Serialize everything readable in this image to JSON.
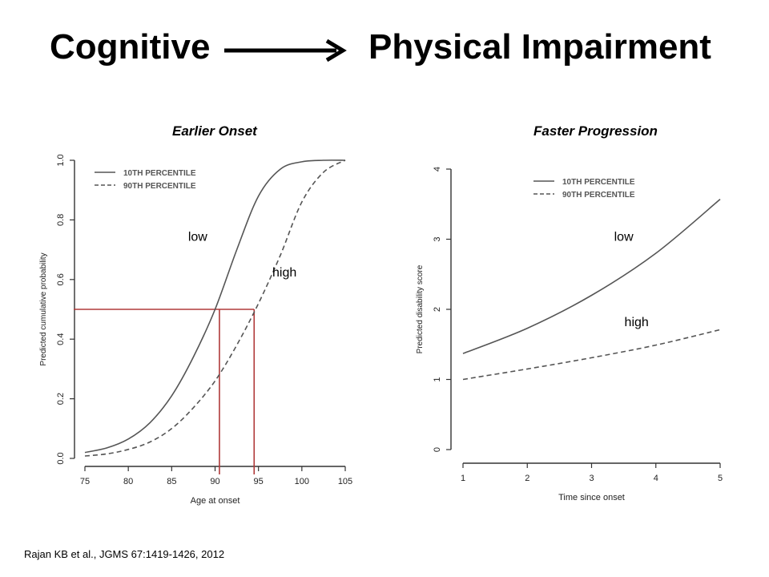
{
  "slide": {
    "title_left": "Cognitive",
    "title_right": "Physical Impairment",
    "citation": "Rajan KB et al., JGMS 67:1419-1426, 2012"
  },
  "colors": {
    "line": "#555555",
    "guide": "#b03a3a",
    "axis": "#333333"
  },
  "chart_data": [
    {
      "type": "line",
      "title": "Earlier Onset",
      "xlabel": "Age at onset",
      "ylabel": "Predicted cumulative probability",
      "xlim": [
        75,
        105
      ],
      "ylim": [
        0,
        1
      ],
      "xticks": [
        "75",
        "80",
        "85",
        "90",
        "95",
        "100",
        "105"
      ],
      "yticks": [
        "0.0",
        "0.2",
        "0.4",
        "0.6",
        "0.8",
        "1.0"
      ],
      "legend_position": "top-left",
      "x": [
        75,
        77.5,
        80,
        82.5,
        85,
        87.5,
        90,
        92.5,
        95,
        97.5,
        100,
        102.5,
        105
      ],
      "series": [
        {
          "name": "10TH PERCENTILE",
          "style": "solid",
          "values": [
            0.02,
            0.035,
            0.065,
            0.12,
            0.21,
            0.34,
            0.5,
            0.7,
            0.88,
            0.97,
            0.995,
            1.0,
            1.0
          ]
        },
        {
          "name": "90TH PERCENTILE",
          "style": "dashed",
          "values": [
            0.008,
            0.015,
            0.03,
            0.055,
            0.1,
            0.17,
            0.26,
            0.38,
            0.52,
            0.68,
            0.86,
            0.96,
            1.0
          ]
        }
      ],
      "annotations": [
        {
          "text": "low",
          "x": 88,
          "y": 0.73
        },
        {
          "text": "high",
          "x": 98,
          "y": 0.61
        }
      ],
      "reference_lines": {
        "y": 0.5,
        "x_points": [
          90.5,
          94.5
        ]
      }
    },
    {
      "type": "line",
      "title": "Faster Progression",
      "xlabel": "Time since onset",
      "ylabel": "Predicted disability score",
      "xlim": [
        1,
        5
      ],
      "ylim": [
        0,
        4
      ],
      "xticks": [
        "1",
        "2",
        "3",
        "4",
        "5"
      ],
      "yticks": [
        "0",
        "1",
        "2",
        "3",
        "4"
      ],
      "legend_position": "top-left",
      "x": [
        1,
        2,
        3,
        4,
        5
      ],
      "series": [
        {
          "name": "10TH PERCENTILE",
          "style": "solid",
          "values": [
            1.37,
            1.73,
            2.2,
            2.8,
            3.57
          ]
        },
        {
          "name": "90TH PERCENTILE",
          "style": "dashed",
          "values": [
            1.0,
            1.15,
            1.31,
            1.49,
            1.71
          ]
        }
      ],
      "annotations": [
        {
          "text": "low",
          "x": 3.5,
          "y": 2.98
        },
        {
          "text": "high",
          "x": 3.7,
          "y": 1.76
        }
      ]
    }
  ]
}
